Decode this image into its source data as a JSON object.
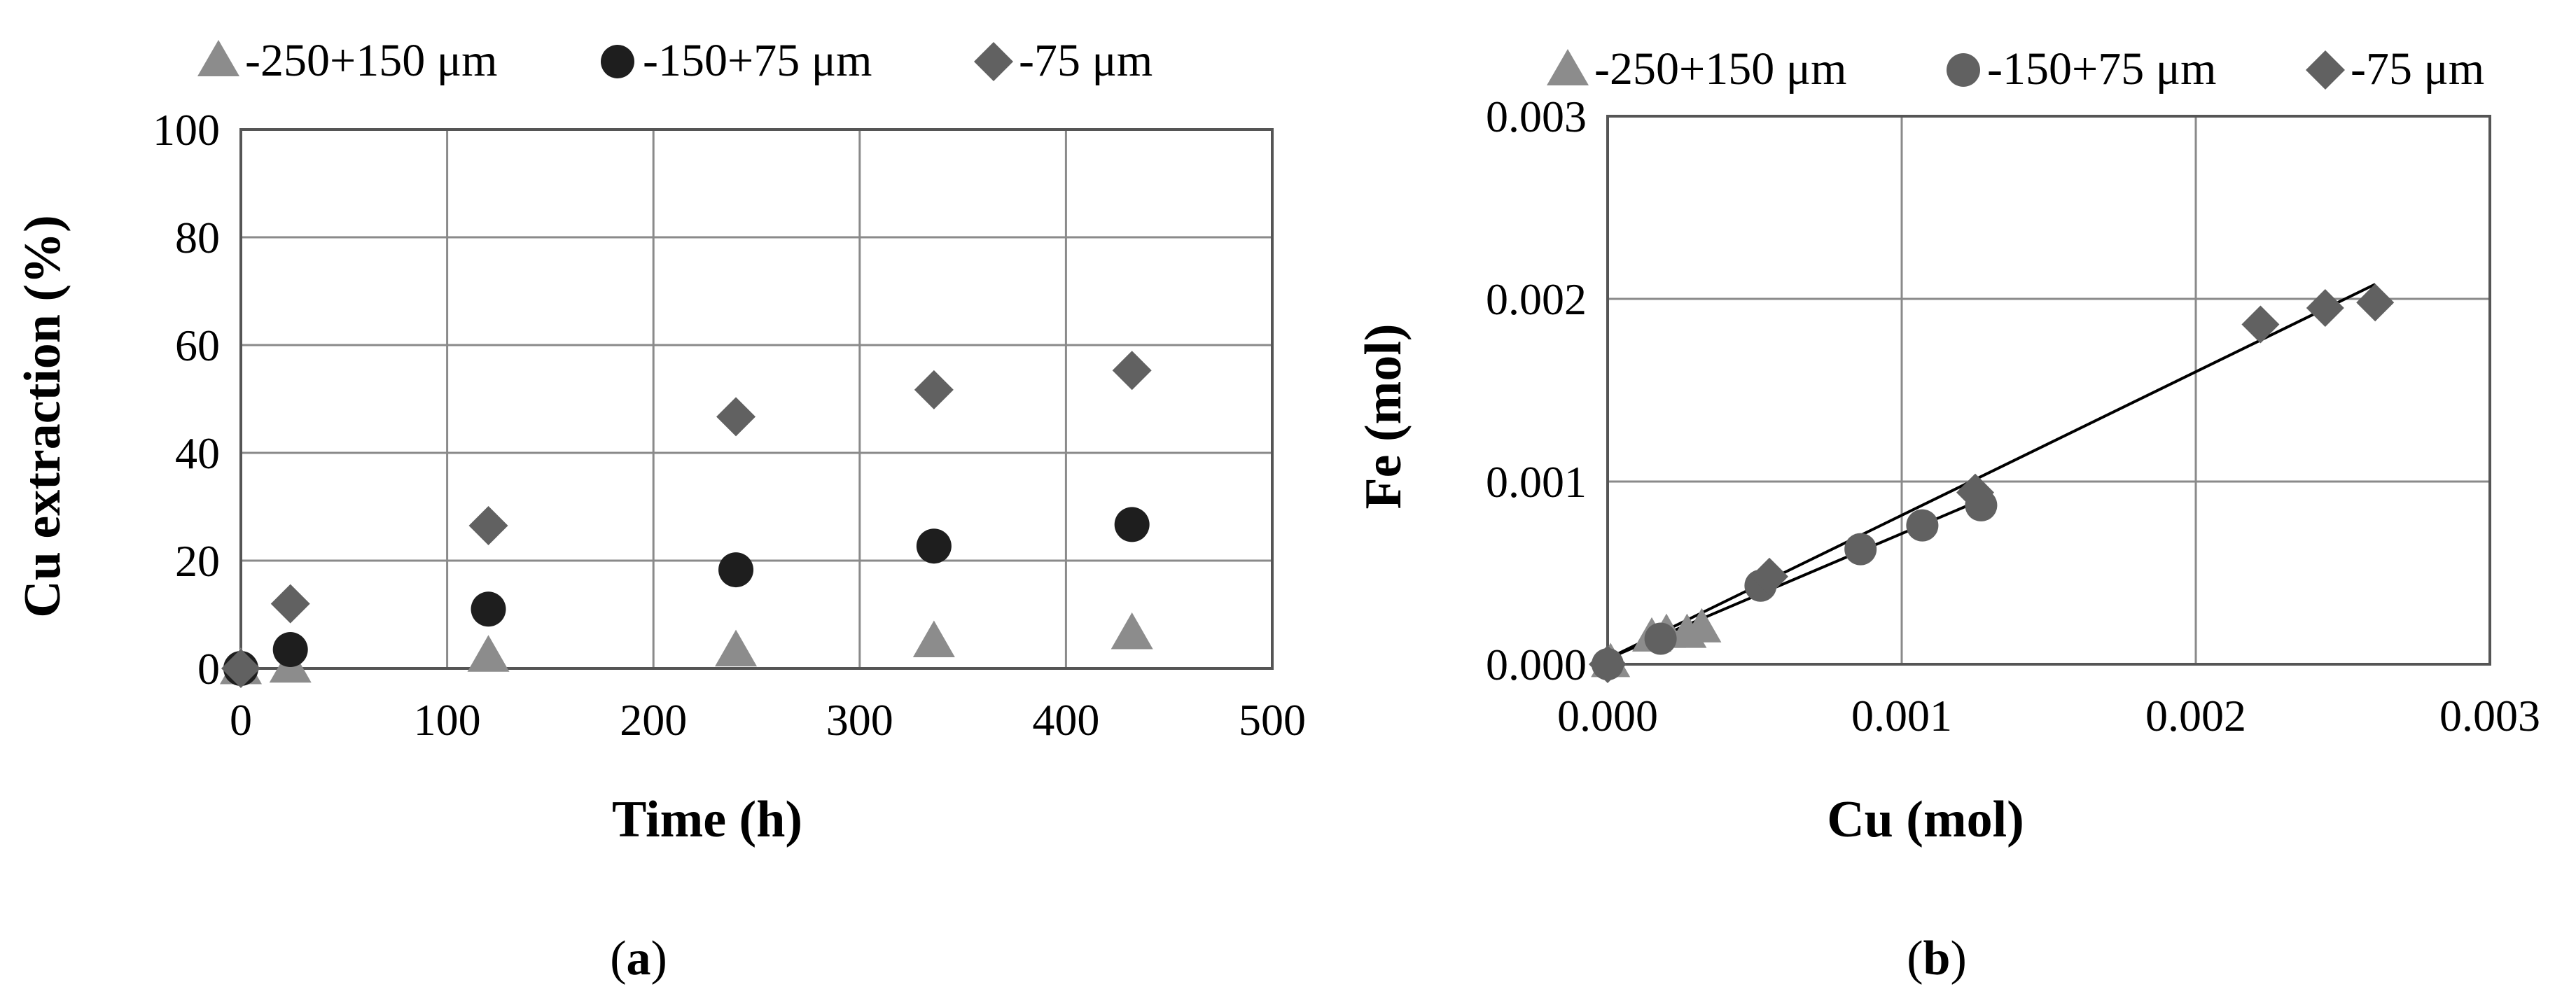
{
  "colors": {
    "series_250_150": "#8c8c8c",
    "series_150_75": "#1e1e1e",
    "series_75": "#616161",
    "grid": "#8a8a8a",
    "frame": "#555555",
    "fit_line": "#000000"
  },
  "chart_data": [
    {
      "panel": "a",
      "panel_label": {
        "open": "(",
        "letter": "a",
        "close": ")"
      },
      "type": "scatter",
      "xlabel": "Time (h)",
      "ylabel": "Cu extraction (%)",
      "xlim": [
        0,
        500
      ],
      "ylim": [
        0,
        100
      ],
      "xticks": [
        0,
        100,
        200,
        300,
        400,
        500
      ],
      "yticks": [
        0,
        20,
        40,
        60,
        80,
        100
      ],
      "xtick_labels": [
        "0",
        "100",
        "200",
        "300",
        "400",
        "500"
      ],
      "ytick_labels": [
        "0",
        "20",
        "40",
        "60",
        "80",
        "100"
      ],
      "grid": true,
      "legend_position": "top",
      "series": [
        {
          "name": "-250+150 μm",
          "marker": "triangle",
          "color": "#8c8c8c",
          "points": [
            [
              0,
              0
            ],
            [
              24,
              0.3
            ],
            [
              120,
              2.3
            ],
            [
              240,
              3.3
            ],
            [
              336,
              5
            ],
            [
              432,
              6.5
            ]
          ]
        },
        {
          "name": "-150+75 μm",
          "marker": "circle",
          "color": "#1e1e1e",
          "points": [
            [
              0,
              0
            ],
            [
              24,
              3.5
            ],
            [
              120,
              11
            ],
            [
              240,
              18.3
            ],
            [
              336,
              22.7
            ],
            [
              432,
              26.7
            ]
          ]
        },
        {
          "name": "-75 μm",
          "marker": "diamond",
          "color": "#616161",
          "points": [
            [
              0,
              0
            ],
            [
              24,
              12
            ],
            [
              120,
              26.5
            ],
            [
              240,
              46.7
            ],
            [
              336,
              51.7
            ],
            [
              432,
              55.3
            ]
          ]
        }
      ]
    },
    {
      "panel": "b",
      "panel_label": {
        "open": "(",
        "letter": "b",
        "close": ")"
      },
      "type": "scatter",
      "xlabel": "Cu (mol)",
      "ylabel": "Fe (mol)",
      "xlim": [
        0,
        0.003
      ],
      "ylim": [
        0,
        0.003
      ],
      "xticks": [
        0,
        0.001,
        0.002,
        0.003
      ],
      "yticks": [
        0,
        0.001,
        0.002,
        0.003
      ],
      "xtick_labels": [
        "0.000",
        "0.001",
        "0.002",
        "0.003"
      ],
      "ytick_labels": [
        "0.000",
        "0.001",
        "0.002",
        "0.003"
      ],
      "grid": true,
      "legend_position": "top",
      "series": [
        {
          "name": "-250+150 μm",
          "marker": "triangle",
          "color": "#8c8c8c",
          "points": [
            [
              1e-05,
              1e-05
            ],
            [
              0.00015,
              0.00015
            ],
            [
              0.0002,
              0.00017
            ],
            [
              0.00027,
              0.00017
            ],
            [
              0.00032,
              0.0002
            ]
          ]
        },
        {
          "name": "-150+75 μm",
          "marker": "circle",
          "color": "#616161",
          "points": [
            [
              0,
              0
            ],
            [
              0.00018,
              0.00014
            ],
            [
              0.00052,
              0.00043
            ],
            [
              0.00086,
              0.00063
            ],
            [
              0.00107,
              0.00076
            ],
            [
              0.00127,
              0.00087
            ]
          ]
        },
        {
          "name": "-75 μm",
          "marker": "diamond",
          "color": "#616161",
          "points": [
            [
              0,
              0
            ],
            [
              0.00055,
              0.00048
            ],
            [
              0.00125,
              0.00094
            ],
            [
              0.00222,
              0.00186
            ],
            [
              0.00244,
              0.00195
            ],
            [
              0.00261,
              0.00198
            ]
          ]
        }
      ],
      "trendlines": [
        {
          "from": [
            0,
            3e-05
          ],
          "to": [
            0.00261,
            0.00208
          ]
        },
        {
          "from": [
            0,
            3e-05
          ],
          "to": [
            0.00127,
            0.0009
          ]
        }
      ]
    }
  ]
}
